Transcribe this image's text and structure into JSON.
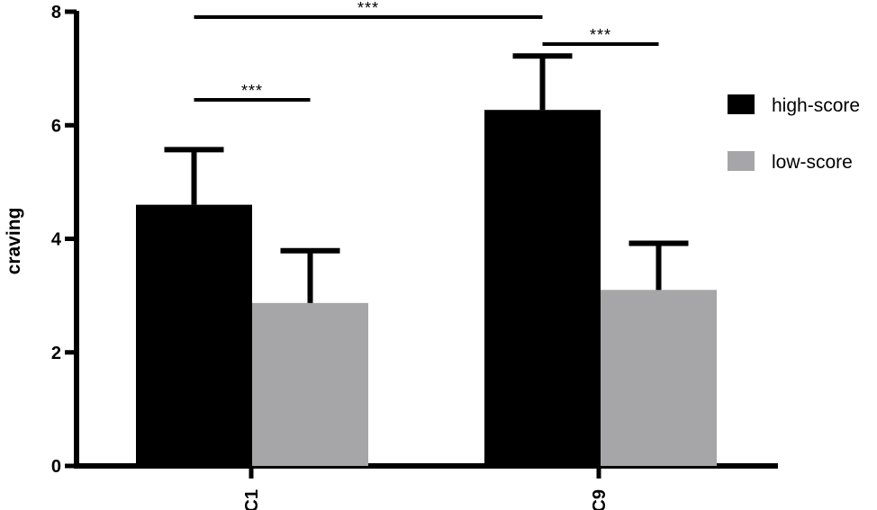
{
  "chart_data": {
    "type": "bar",
    "categories": [
      "C1",
      "C9"
    ],
    "series": [
      {
        "name": "high-score",
        "color": "#000000",
        "values": [
          4.6,
          6.27
        ],
        "error": [
          0.97,
          0.95
        ]
      },
      {
        "name": "low-score",
        "color": "#a6a6a8",
        "values": [
          2.87,
          3.1
        ],
        "error": [
          0.92,
          0.82
        ]
      }
    ],
    "ylabel": "craving",
    "xlabel": "",
    "ylim": [
      0,
      8
    ],
    "yticks": [
      0,
      2,
      4,
      6,
      8
    ],
    "legend_position": "right",
    "significance": [
      {
        "label": "***",
        "comparison": "C1 high-score vs C1 low-score"
      },
      {
        "label": "***",
        "comparison": "C1 high-score vs C9 high-score"
      },
      {
        "label": "***",
        "comparison": "C9 high-score vs C9 low-score"
      }
    ]
  }
}
